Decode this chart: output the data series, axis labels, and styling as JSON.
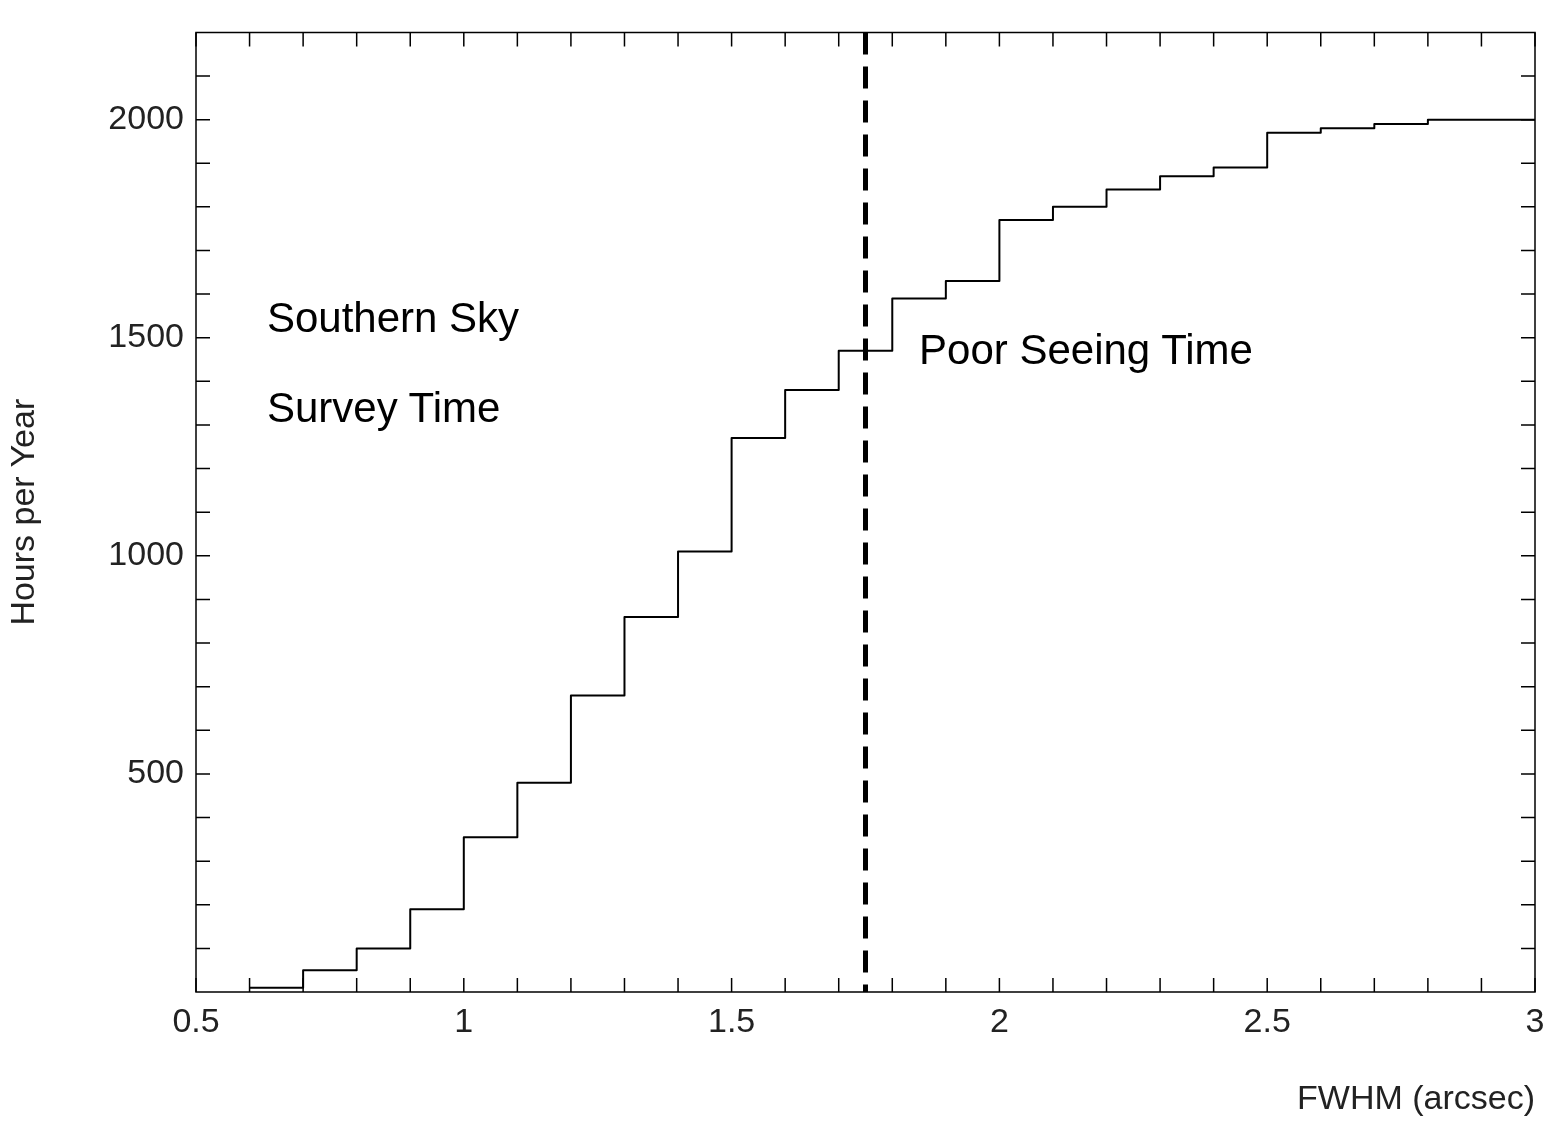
{
  "chart_data": {
    "type": "step",
    "xlabel": "FWHM (arcsec)",
    "ylabel": "Hours per Year",
    "x": [
      0.6,
      0.7,
      0.8,
      0.9,
      1.0,
      1.1,
      1.2,
      1.3,
      1.4,
      1.5,
      1.6,
      1.7,
      1.8,
      1.9,
      2.0,
      2.1,
      2.2,
      2.3,
      2.4,
      2.5,
      2.6,
      2.7,
      2.8,
      2.9,
      3.0
    ],
    "values": [
      10,
      50,
      100,
      190,
      355,
      480,
      680,
      860,
      1010,
      1270,
      1380,
      1470,
      1590,
      1630,
      1770,
      1800,
      1840,
      1870,
      1890,
      1970,
      1980,
      1990,
      2000,
      2000,
      2000
    ],
    "color": "#000000",
    "xlim": [
      0.5,
      3
    ],
    "xticks": [
      0.5,
      {
        "value": 0.6,
        "label": null
      },
      {
        "value": 0.7,
        "label": null
      },
      {
        "value": 0.8,
        "label": null
      },
      {
        "value": 0.9,
        "label": null
      },
      1,
      {
        "value": 1.1,
        "label": null
      },
      {
        "value": 1.2,
        "label": null
      },
      {
        "value": 1.3,
        "label": null
      },
      {
        "value": 1.4,
        "label": null
      },
      1.5,
      {
        "value": 1.6,
        "label": null
      },
      {
        "value": 1.7,
        "label": null
      },
      {
        "value": 1.8,
        "label": null
      },
      {
        "value": 1.9,
        "label": null
      },
      2,
      {
        "value": 2.1,
        "label": null
      },
      {
        "value": 2.2,
        "label": null
      },
      {
        "value": 2.3,
        "label": null
      },
      {
        "value": 2.4,
        "label": null
      },
      2.5,
      {
        "value": 2.6,
        "label": null
      },
      {
        "value": 2.7,
        "label": null
      },
      {
        "value": 2.8,
        "label": null
      },
      {
        "value": 2.9,
        "label": null
      },
      3
    ],
    "ylim": [
      0,
      2200
    ],
    "yticks": [
      {
        "value": 100,
        "label": null
      },
      {
        "value": 200,
        "label": null
      },
      {
        "value": 300,
        "label": null
      },
      {
        "value": 400,
        "label": null
      },
      500,
      {
        "value": 600,
        "label": null
      },
      {
        "value": 700,
        "label": null
      },
      {
        "value": 800,
        "label": null
      },
      {
        "value": 900,
        "label": null
      },
      1000,
      {
        "value": 1100,
        "label": null
      },
      {
        "value": 1200,
        "label": null
      },
      {
        "value": 1300,
        "label": null
      },
      {
        "value": 1400,
        "label": null
      },
      1500,
      {
        "value": 1600,
        "label": null
      },
      {
        "value": 1700,
        "label": null
      },
      {
        "value": 1800,
        "label": null
      },
      {
        "value": 1900,
        "label": null
      },
      2000,
      {
        "value": 2100,
        "label": null
      }
    ],
    "ref_lines": [
      {
        "axis": "x",
        "value": 1.75,
        "label": null,
        "color": "#000000",
        "line_style": "dashed"
      }
    ],
    "annotations": [
      "Southern Sky Survey Time",
      "Poor Seeing Time"
    ],
    "grid": false,
    "legend": false
  }
}
